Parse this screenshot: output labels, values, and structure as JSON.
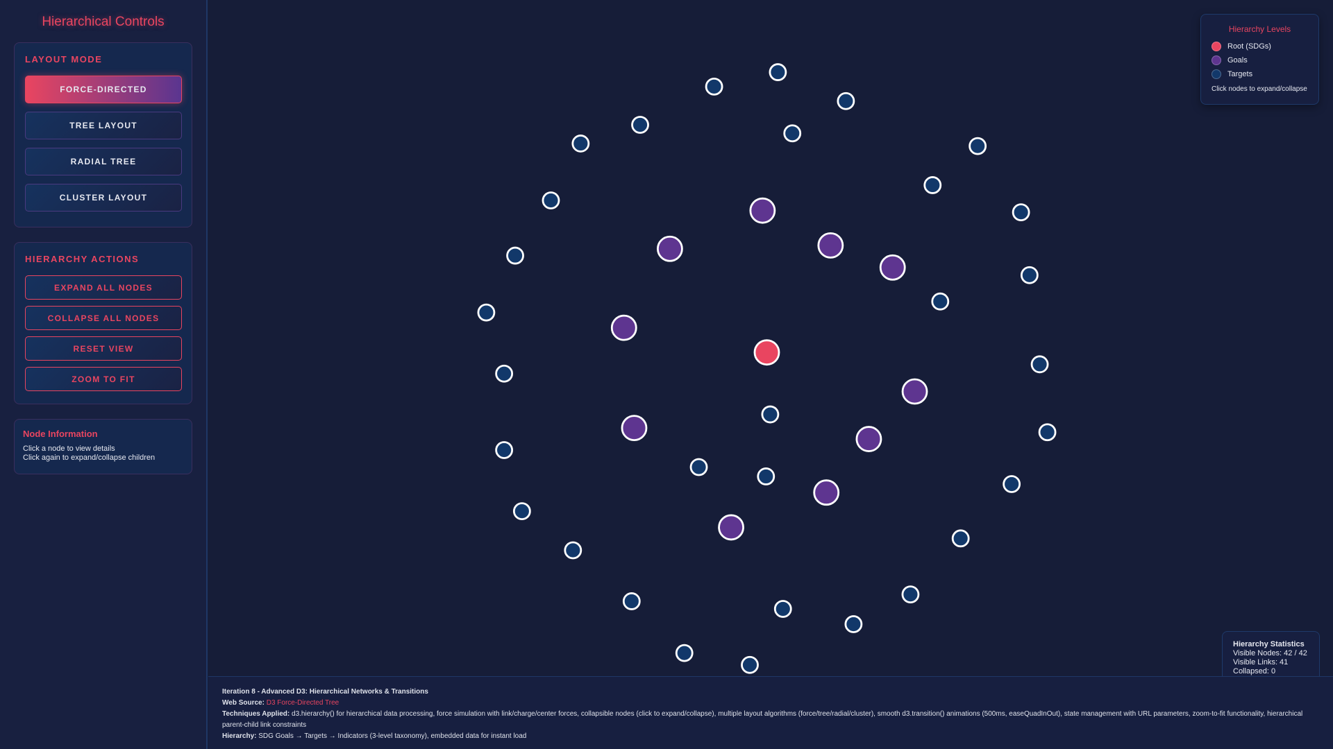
{
  "sidebar": {
    "title": "Hierarchical Controls",
    "layout_mode": {
      "heading": "LAYOUT MODE",
      "buttons": [
        "FORCE-DIRECTED",
        "TREE LAYOUT",
        "RADIAL TREE",
        "CLUSTER LAYOUT"
      ],
      "active": "FORCE-DIRECTED"
    },
    "actions": {
      "heading": "HIERARCHY ACTIONS",
      "buttons": [
        "EXPAND ALL NODES",
        "COLLAPSE ALL NODES",
        "RESET VIEW",
        "ZOOM TO FIT"
      ]
    },
    "node_info": {
      "heading": "Node Information",
      "line1": "Click a node to view details",
      "line2": "Click again to expand/collapse children"
    }
  },
  "legend": {
    "title": "Hierarchy Levels",
    "items": [
      {
        "label": "Root (SDGs)",
        "color": "#e94560"
      },
      {
        "label": "Goals",
        "color": "#5e3590"
      },
      {
        "label": "Targets",
        "color": "#12386a"
      }
    ],
    "note": "Click nodes to expand/collapse"
  },
  "stats": {
    "title": "Hierarchy Statistics",
    "visible_nodes": "Visible Nodes: 42 / 42",
    "visible_links": "Visible Links: 41",
    "collapsed": "Collapsed: 0"
  },
  "footer": {
    "title": "Iteration 8 - Advanced D3: Hierarchical Networks & Transitions",
    "source_label": "Web Source:",
    "source_link": "D3 Force-Directed Tree",
    "techniques_label": "Techniques Applied:",
    "techniques": "d3.hierarchy() for hierarchical data processing, force simulation with link/charge/center forces, collapsible nodes (click to expand/collapse), multiple layout algorithms (force/tree/radial/cluster), smooth d3.transition() animations (500ms, easeQuadInOut), state management with URL parameters, zoom-to-fit functionality, hierarchical parent-child link constraints",
    "hierarchy_label": "Hierarchy:",
    "hierarchy": "SDG Goals → Targets → Indicators (3-level taxonomy), embedded data for instant load"
  },
  "graph": {
    "node_counts": {
      "root": 1,
      "goals": 10,
      "targets": 31
    },
    "colors": {
      "root": "#e94560",
      "goal": "#5e3590",
      "target": "#12386a",
      "stroke": "#ffffff"
    }
  }
}
